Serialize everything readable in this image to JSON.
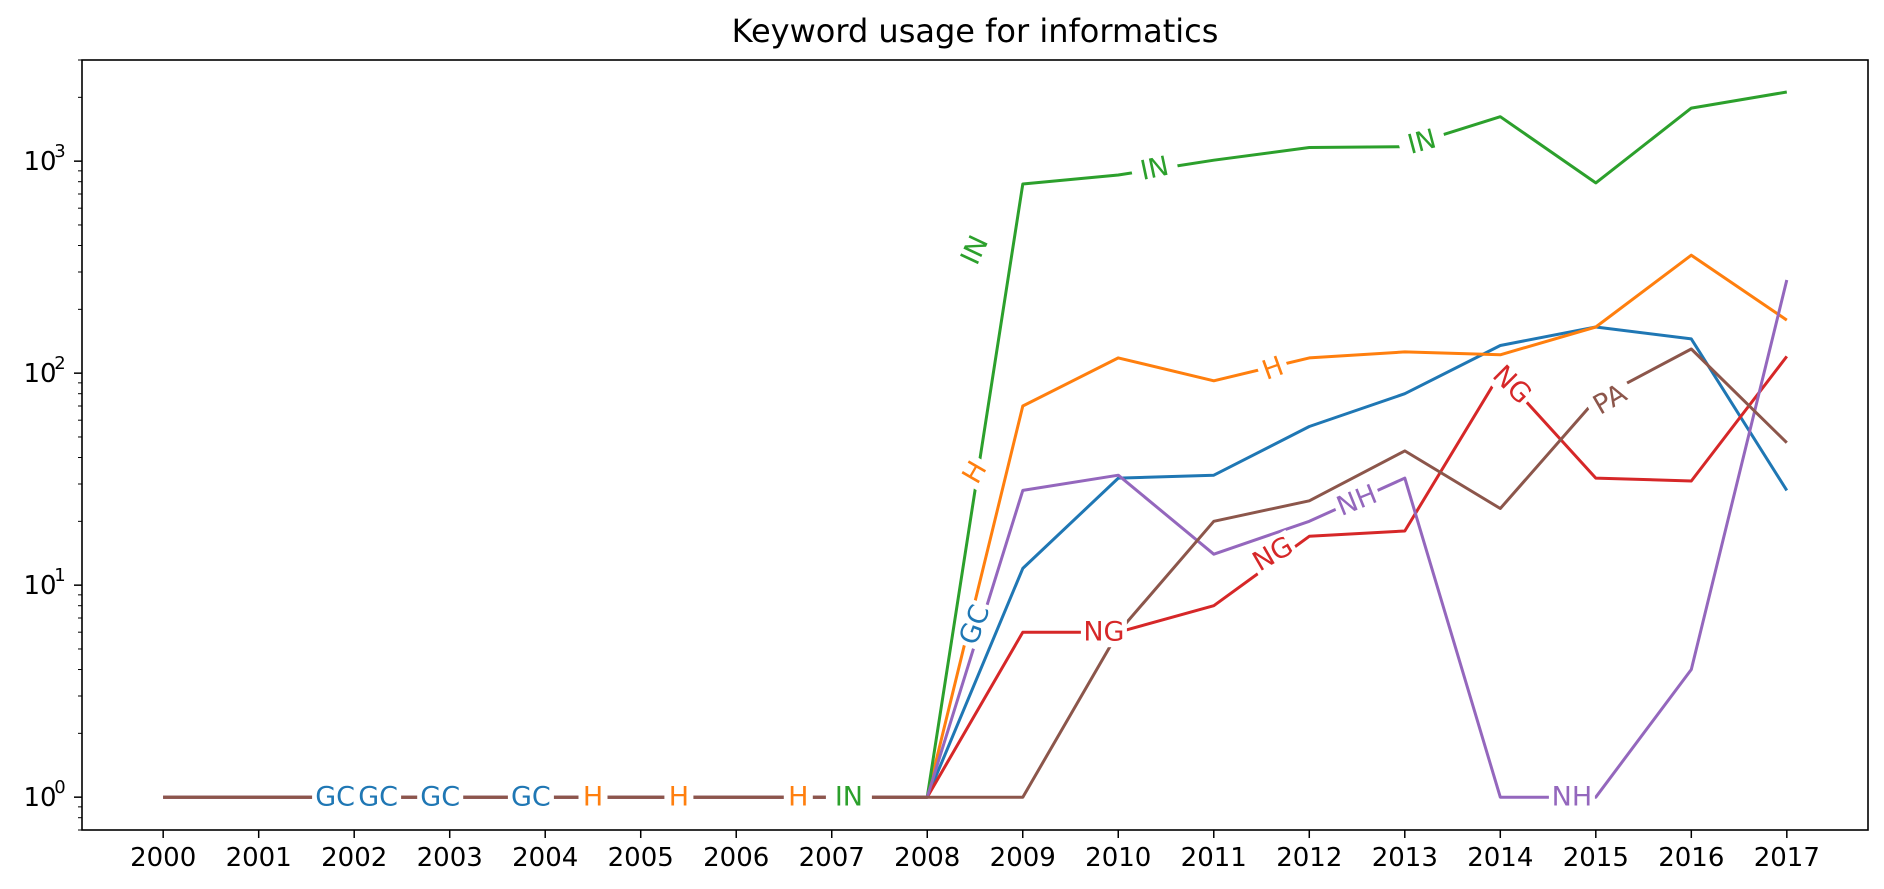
{
  "chart_data": {
    "type": "line",
    "title": "Keyword usage for informatics",
    "xlabel": "",
    "ylabel": "",
    "yscale": "log",
    "ylim": [
      0.7,
      3000
    ],
    "grid": false,
    "legend": "none",
    "x": [
      2000,
      2001,
      2002,
      2003,
      2004,
      2005,
      2006,
      2007,
      2008,
      2009,
      2010,
      2011,
      2012,
      2013,
      2014,
      2015,
      2016,
      2017
    ],
    "y_ticks": [
      {
        "value": 1,
        "base": "10",
        "exp": "0"
      },
      {
        "value": 10,
        "base": "10",
        "exp": "1"
      },
      {
        "value": 100,
        "base": "10",
        "exp": "2"
      },
      {
        "value": 1000,
        "base": "10",
        "exp": "3"
      }
    ],
    "series": [
      {
        "name": "GC",
        "color": "#1f77b4",
        "values": [
          1,
          1,
          1,
          1,
          1,
          1,
          1,
          1,
          1,
          12,
          32,
          33,
          56,
          80,
          135,
          165,
          145,
          28
        ],
        "labels": [
          {
            "text": "GC",
            "x": 2001.8,
            "y": 1,
            "angle": 0
          },
          {
            "text": "GC",
            "x": 2002.25,
            "y": 1,
            "angle": 0
          },
          {
            "text": "GC",
            "x": 2002.9,
            "y": 1,
            "angle": 0
          },
          {
            "text": "GC",
            "x": 2003.85,
            "y": 1,
            "angle": 0
          },
          {
            "text": "GC",
            "x": 2008.5,
            "y": 6.5,
            "angle": -70
          }
        ]
      },
      {
        "name": "H",
        "color": "#ff7f0e",
        "values": [
          1,
          1,
          1,
          1,
          1,
          1,
          1,
          1,
          1,
          70,
          118,
          92,
          118,
          126,
          122,
          165,
          360,
          178
        ],
        "labels": [
          {
            "text": "H",
            "x": 2004.5,
            "y": 1,
            "angle": 0
          },
          {
            "text": "H",
            "x": 2005.4,
            "y": 1,
            "angle": 0
          },
          {
            "text": "H",
            "x": 2006.65,
            "y": 1,
            "angle": 0
          },
          {
            "text": "H",
            "x": 2008.5,
            "y": 34,
            "angle": -60
          },
          {
            "text": "H",
            "x": 2011.62,
            "y": 105,
            "angle": -20
          }
        ]
      },
      {
        "name": "IN",
        "color": "#2ca02c",
        "values": [
          1,
          1,
          1,
          1,
          1,
          1,
          1,
          1,
          1,
          780,
          860,
          1010,
          1160,
          1170,
          1620,
          790,
          1780,
          2120
        ],
        "labels": [
          {
            "text": "IN",
            "x": 2007.18,
            "y": 1,
            "angle": 0
          },
          {
            "text": "IN",
            "x": 2008.5,
            "y": 380,
            "angle": -65
          },
          {
            "text": "IN",
            "x": 2010.38,
            "y": 920,
            "angle": -12
          },
          {
            "text": "IN",
            "x": 2013.18,
            "y": 1230,
            "angle": -15
          }
        ]
      },
      {
        "name": "NG",
        "color": "#d62728",
        "values": [
          1,
          1,
          1,
          1,
          1,
          1,
          1,
          1,
          1,
          6,
          6,
          8,
          17,
          18,
          100,
          32,
          31,
          120
        ],
        "labels": [
          {
            "text": "NG",
            "x": 2009.85,
            "y": 6,
            "angle": 0
          },
          {
            "text": "NG",
            "x": 2011.62,
            "y": 14,
            "angle": -30
          },
          {
            "text": "NG",
            "x": 2014.12,
            "y": 88,
            "angle": 45
          }
        ]
      },
      {
        "name": "NH",
        "color": "#9467bd",
        "values": [
          1,
          1,
          1,
          1,
          1,
          1,
          1,
          1,
          1,
          28,
          33,
          14,
          20,
          32,
          1,
          1,
          4,
          275
        ],
        "labels": [
          {
            "text": "NH",
            "x": 2012.5,
            "y": 25,
            "angle": -22
          },
          {
            "text": "NH",
            "x": 2014.75,
            "y": 1,
            "angle": 0
          }
        ]
      },
      {
        "name": "PA",
        "color": "#8c564b",
        "values": [
          1,
          1,
          1,
          1,
          1,
          1,
          1,
          1,
          1,
          1,
          6,
          20,
          25,
          43,
          23,
          75,
          130,
          47
        ],
        "labels": [
          {
            "text": "PA",
            "x": 2015.15,
            "y": 75,
            "angle": -30
          }
        ]
      }
    ]
  }
}
